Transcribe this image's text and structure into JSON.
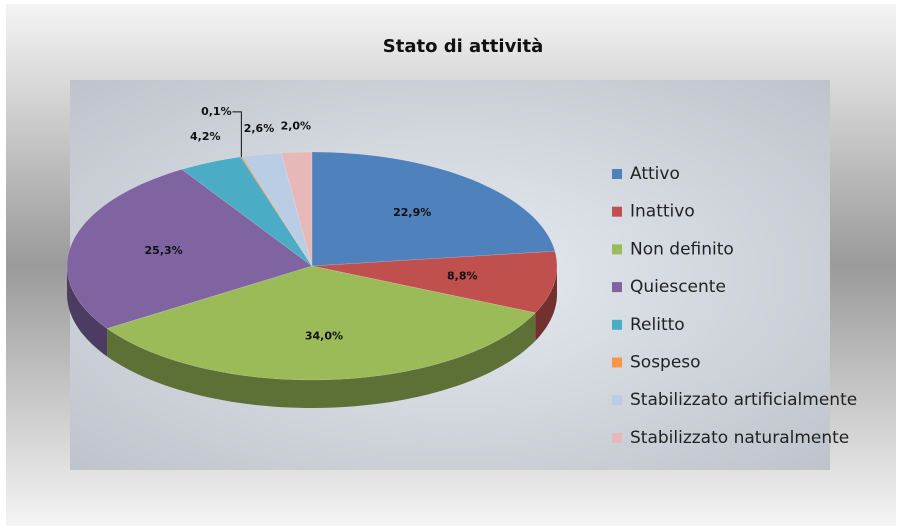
{
  "chart_data": {
    "type": "pie",
    "title": "Stato di attività",
    "categories": [
      "Attivo",
      "Inattivo",
      "Non definito",
      "Quiescente",
      "Relitto",
      "Sospeso",
      "Stabilizzato artificialmente",
      "Stabilizzato naturalmente"
    ],
    "values": [
      22.9,
      8.8,
      34.0,
      25.3,
      4.2,
      0.1,
      2.6,
      2.0
    ],
    "value_labels": [
      "22,9%",
      "8,8%",
      "34,0%",
      "25,3%",
      "4,2%",
      "0,1%",
      "2,6%",
      "2,0%"
    ],
    "colors": [
      "#4f81bd",
      "#c0504d",
      "#9bbb59",
      "#8064a2",
      "#4bacc6",
      "#f79646",
      "#b9cde5",
      "#e6b9b8"
    ],
    "legend": "right"
  }
}
